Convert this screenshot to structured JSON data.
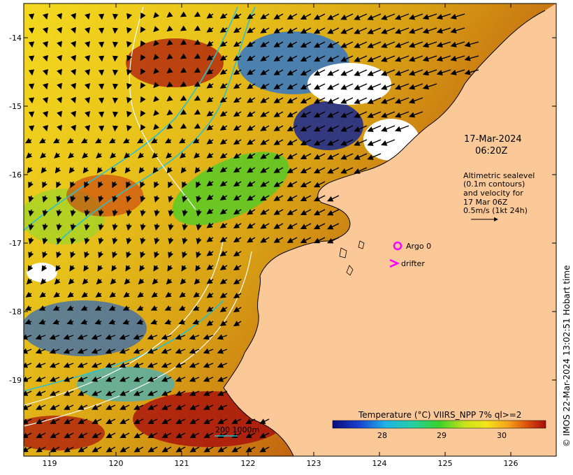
{
  "map": {
    "lon_ticks": [
      "119",
      "120",
      "121",
      "122",
      "123",
      "124",
      "125",
      "126"
    ],
    "lat_ticks": [
      "-14",
      "-15",
      "-16",
      "-17",
      "-18",
      "-19"
    ],
    "date_line1": "17-Mar-2024",
    "date_line2": "06:20Z",
    "altimetry_note": [
      "Altimetric sealevel",
      "(0.1m contours)",
      "and velocity for",
      "17 Mar 06Z",
      "0.5m/s (1kt 24h)"
    ],
    "legend": {
      "argo_label": "Argo 0",
      "drifter_label": "drifter",
      "argo_color": "#ff00ff",
      "drifter_color": "#ff00ff"
    },
    "scale_bar_label": "200  1000m",
    "colorbar": {
      "title": "Temperature (°C) VIIRS_NPP 7% ql>=2",
      "ticks": [
        "28",
        "29",
        "30"
      ]
    },
    "credit": "© IMOS 22-Mar-2024 13:02:51 Hobart time",
    "colors": {
      "land": "#fbc898",
      "contour_cyan": "#29c1cf",
      "contour_white": "#ffffff",
      "arrow": "#000000"
    }
  }
}
